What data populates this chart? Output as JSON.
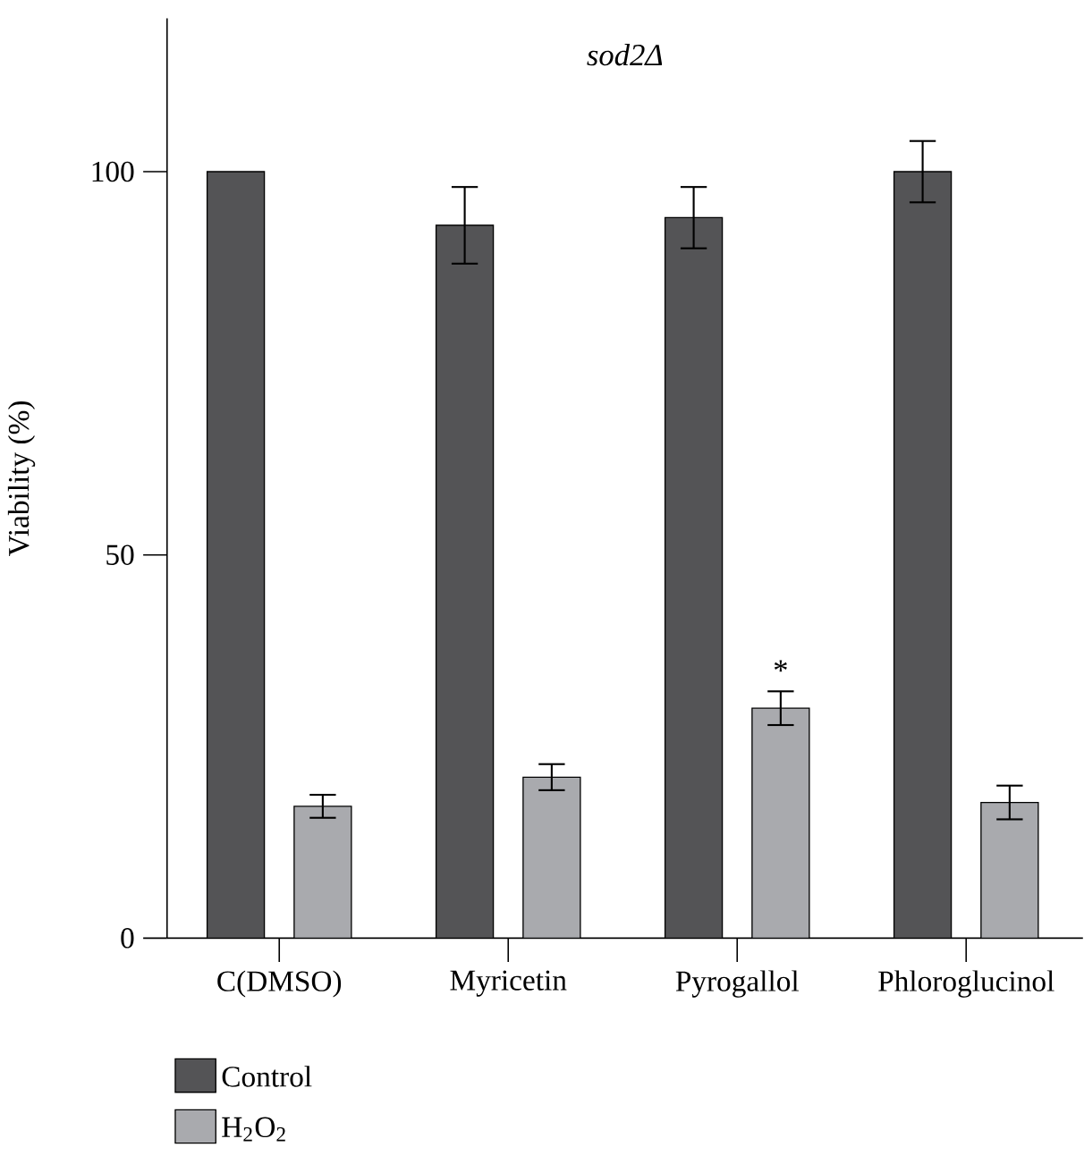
{
  "chart_data": {
    "type": "bar",
    "title": "sod2Δ",
    "ylabel": "Viability (%)",
    "categories": [
      "C(DMSO)",
      "Myricetin",
      "Pyrogallol",
      "Phloroglucinol"
    ],
    "series": [
      {
        "name": "Control",
        "color": "#545456",
        "values": [
          100,
          93,
          94,
          100
        ],
        "errors": [
          null,
          5,
          4,
          4
        ]
      },
      {
        "name": "H$_{2}$O$_{2}$",
        "color": "#a9aaae",
        "values": [
          17.2,
          21,
          30,
          17.7
        ],
        "errors": [
          1.5,
          1.7,
          2.2,
          2.2
        ]
      }
    ],
    "ylim": [
      0,
      120
    ],
    "yticks": [
      0,
      50,
      100
    ],
    "grid": false,
    "legend": "bottom left",
    "annotations": [
      "*"
    ]
  }
}
